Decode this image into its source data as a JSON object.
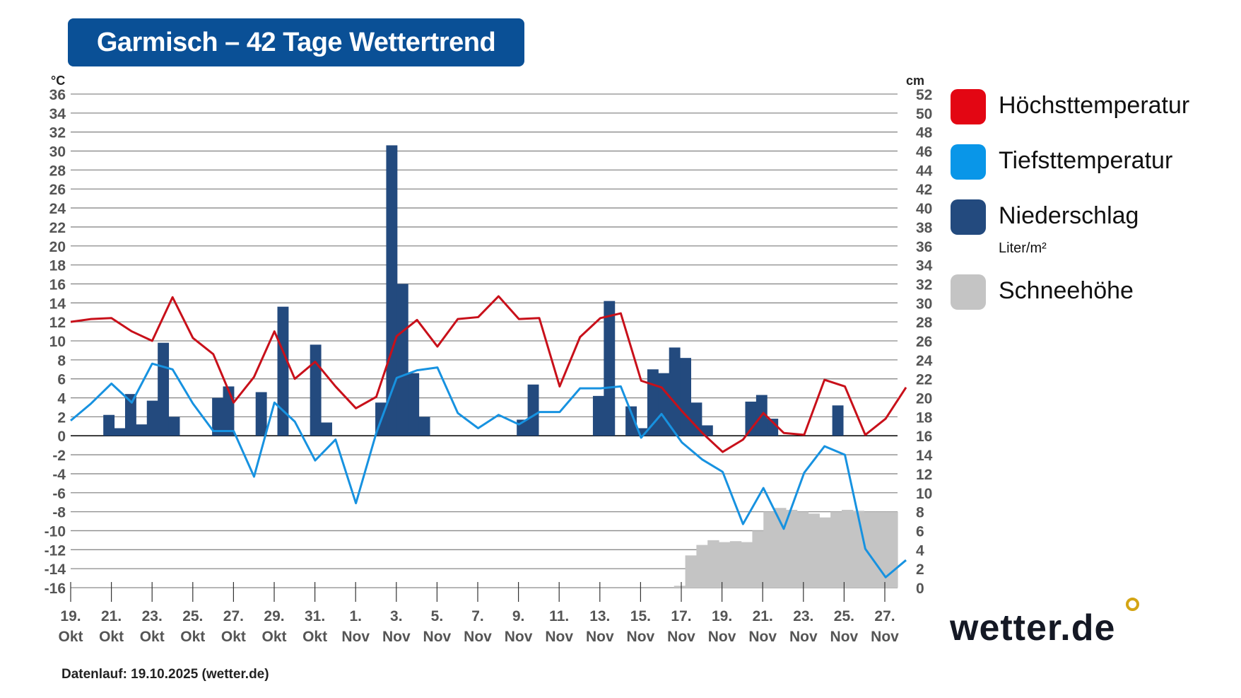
{
  "header": {
    "title": "Garmisch – 42 Tage Wettertrend"
  },
  "axes": {
    "left_unit": "°C",
    "right_unit": "cm"
  },
  "legend": {
    "items": [
      {
        "label": "Höchsttemperatur",
        "color": "#e30613"
      },
      {
        "label": "Tiefsttemperatur",
        "color": "#0996e8"
      },
      {
        "label": "Niederschlag",
        "color": "#234a7e",
        "sub": "Liter/m²"
      },
      {
        "label": "Schneehöhe",
        "color": "#c4c4c4"
      }
    ]
  },
  "footer": {
    "text": "Datenlauf: 19.10.2025 (wetter.de)"
  },
  "logo": {
    "text": "wetter.de"
  },
  "chart_data": {
    "type": "line",
    "title": "Garmisch – 42 Tage Wettertrend",
    "xlabel": "",
    "ylabel": "°C",
    "y2label": "cm",
    "ylim": [
      -16,
      36
    ],
    "y2lim": [
      0,
      52
    ],
    "y_ticks": [
      36,
      34,
      32,
      30,
      28,
      26,
      24,
      22,
      20,
      18,
      16,
      14,
      12,
      10,
      8,
      6,
      4,
      2,
      0,
      -2,
      -4,
      -6,
      -8,
      -10,
      -12,
      -14,
      -16
    ],
    "y2_ticks": [
      52,
      50,
      48,
      46,
      44,
      42,
      40,
      38,
      36,
      34,
      32,
      30,
      28,
      26,
      24,
      22,
      20,
      18,
      16,
      14,
      12,
      10,
      8,
      6,
      4,
      2,
      0
    ],
    "x_tick_labels": [
      [
        "19.",
        "Okt"
      ],
      [
        "21.",
        "Okt"
      ],
      [
        "23.",
        "Okt"
      ],
      [
        "25.",
        "Okt"
      ],
      [
        "27.",
        "Okt"
      ],
      [
        "29.",
        "Okt"
      ],
      [
        "31.",
        "Okt"
      ],
      [
        "1.",
        "Nov"
      ],
      [
        "3.",
        "Nov"
      ],
      [
        "5.",
        "Nov"
      ],
      [
        "7.",
        "Nov"
      ],
      [
        "9.",
        "Nov"
      ],
      [
        "11.",
        "Nov"
      ],
      [
        "13.",
        "Nov"
      ],
      [
        "15.",
        "Nov"
      ],
      [
        "17.",
        "Nov"
      ],
      [
        "19.",
        "Nov"
      ],
      [
        "21.",
        "Nov"
      ],
      [
        "23.",
        "Nov"
      ],
      [
        "25.",
        "Nov"
      ],
      [
        "27.",
        "Nov"
      ]
    ],
    "grid": true,
    "legend_position": "right",
    "series": [
      {
        "name": "Höchsttemperatur",
        "type": "line",
        "axis": "left",
        "color": "#c8101a",
        "values": [
          12,
          12.3,
          12.4,
          11,
          10,
          14.6,
          10.3,
          8.6,
          3.5,
          6.2,
          11,
          6,
          7.8,
          5.2,
          2.9,
          4.1,
          10.5,
          12.2,
          9.4,
          12.3,
          12.5,
          14.7,
          12.3,
          12.4,
          5.2,
          10.4,
          12.4,
          12.9,
          5.8,
          5.1,
          2.6,
          0.3,
          -1.7,
          -0.4,
          2.4,
          0.3,
          0.1,
          5.9,
          5.2,
          0.1,
          1.8,
          5.1
        ]
      },
      {
        "name": "Tiefsttemperatur",
        "type": "line",
        "axis": "left",
        "color": "#1792e0",
        "values": [
          1.6,
          3.4,
          5.5,
          3.5,
          7.6,
          7,
          3.4,
          0.5,
          0.5,
          -4.3,
          3.5,
          1.5,
          -2.6,
          -0.4,
          -7.1,
          0.3,
          6.1,
          6.9,
          7.2,
          2.4,
          0.8,
          2.2,
          1.2,
          2.5,
          2.5,
          5,
          5,
          5.2,
          -0.2,
          2.3,
          -0.7,
          -2.5,
          -3.8,
          -9.3,
          -5.5,
          -9.8,
          -3.9,
          -1.1,
          -2,
          -11.9,
          -14.9,
          -13.1
        ]
      },
      {
        "name": "Niederschlag",
        "type": "bar",
        "axis": "left",
        "unit": "Liter/m²",
        "color": "#234a7e",
        "values": [
          0,
          0,
          0,
          2.2,
          0.8,
          4.4,
          1.2,
          3.7,
          9.8,
          2,
          0,
          0,
          0,
          4,
          5.2,
          0,
          0,
          4.6,
          0,
          13.6,
          0,
          0,
          9.6,
          1.4,
          0,
          0,
          0,
          0,
          3.5,
          30.6,
          16,
          6.6,
          2,
          0,
          0,
          0,
          0,
          0,
          0,
          0,
          0,
          1.7,
          5.4,
          0,
          0,
          0,
          0,
          0,
          4.2,
          14.2,
          0,
          3.1,
          0.8,
          7,
          6.6,
          9.3,
          8.2,
          3.5,
          1.1,
          0,
          0,
          0,
          3.6,
          4.3,
          1.8,
          0,
          0,
          0,
          0,
          0,
          3.2,
          0,
          0,
          0,
          0,
          0
        ]
      },
      {
        "name": "Schneehöhe",
        "type": "area",
        "axis": "right",
        "unit": "cm",
        "color": "#c4c4c4",
        "values": [
          0,
          0,
          0,
          0,
          0,
          0,
          0,
          0,
          0,
          0,
          0,
          0,
          0,
          0,
          0,
          0,
          0,
          0,
          0,
          0,
          0,
          0,
          0,
          0,
          0,
          0,
          0,
          0,
          0,
          0,
          0,
          0,
          0,
          0,
          0,
          0,
          0,
          0,
          0,
          0,
          0,
          0,
          0,
          0,
          0,
          0,
          0,
          0,
          0,
          0,
          0,
          0,
          0,
          0,
          0.2,
          3.4,
          4.5,
          5,
          4.8,
          4.9,
          4.8,
          6,
          8,
          8.4,
          8.2,
          8,
          7.8,
          7.4,
          8,
          8.2,
          8.1,
          8,
          8,
          8
        ]
      }
    ]
  }
}
